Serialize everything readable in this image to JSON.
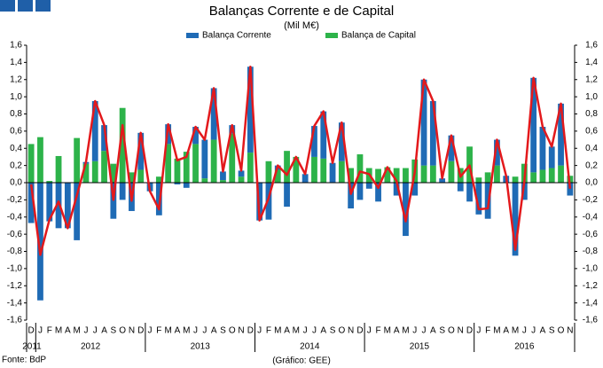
{
  "chart_data": {
    "type": "stacked-bar-line",
    "title": "Balanças Corrente e de Capital",
    "subtitle": "(Mil M€)",
    "source": "Fonte: BdP",
    "credit": "(Gráfico: GEE)",
    "groups": [
      {
        "name": "2011",
        "categories": [
          "D"
        ]
      },
      {
        "name": "2012",
        "categories": [
          "J",
          "F",
          "M",
          "A",
          "M",
          "J",
          "J",
          "A",
          "S",
          "O",
          "N",
          "D"
        ]
      },
      {
        "name": "2013",
        "categories": [
          "J",
          "F",
          "M",
          "A",
          "M",
          "J",
          "J",
          "A",
          "S",
          "O",
          "N",
          "D"
        ]
      },
      {
        "name": "2014",
        "categories": [
          "J",
          "F",
          "M",
          "A",
          "M",
          "J",
          "J",
          "A",
          "S",
          "O",
          "N",
          "D"
        ]
      },
      {
        "name": "2015",
        "categories": [
          "J",
          "F",
          "M",
          "A",
          "M",
          "J",
          "J",
          "A",
          "S",
          "O",
          "N",
          "D"
        ]
      },
      {
        "name": "2016",
        "categories": [
          "J",
          "F",
          "M",
          "A",
          "M",
          "J",
          "J",
          "A",
          "S",
          "O",
          "N"
        ]
      }
    ],
    "series": [
      {
        "name": "Balança Corrente",
        "color": "#1f6bb5",
        "values": [
          -0.47,
          -1.37,
          -0.45,
          -0.53,
          -0.53,
          -0.67,
          0.02,
          0.7,
          0.3,
          -0.42,
          -0.2,
          -0.33,
          0.43,
          -0.1,
          -0.38,
          0.23,
          -0.02,
          -0.06,
          0.2,
          0.45,
          0.6,
          0.1,
          0.1,
          0.07,
          1.0,
          -0.44,
          -0.43,
          0.05,
          -0.28,
          0.0,
          0.1,
          0.36,
          0.55,
          0.23,
          0.45,
          -0.3,
          -0.2,
          -0.07,
          -0.22,
          0.0,
          -0.15,
          -0.62,
          -0.15,
          1.0,
          0.75,
          0.05,
          0.3,
          -0.1,
          -0.22,
          -0.37,
          -0.42,
          0.3,
          0.08,
          -0.85,
          -0.2,
          1.1,
          0.5,
          0.25,
          0.72,
          -0.15
        ]
      },
      {
        "name": "Balança de Capital",
        "color": "#2db34a",
        "values": [
          0.45,
          0.53,
          0.02,
          0.31,
          0.0,
          0.52,
          0.22,
          0.25,
          0.37,
          0.22,
          0.87,
          0.12,
          0.15,
          0.0,
          0.07,
          0.45,
          0.28,
          0.36,
          0.45,
          0.05,
          0.5,
          0.03,
          0.57,
          0.07,
          0.35,
          0.0,
          0.25,
          0.15,
          0.37,
          0.3,
          0.0,
          0.3,
          0.28,
          0.0,
          0.25,
          0.17,
          0.33,
          0.17,
          0.16,
          0.18,
          0.17,
          0.17,
          0.27,
          0.2,
          0.2,
          0.0,
          0.25,
          0.17,
          0.42,
          0.06,
          0.12,
          0.2,
          0.0,
          0.07,
          0.22,
          0.12,
          0.15,
          0.17,
          0.2,
          0.08
        ]
      }
    ],
    "line": {
      "color": "#e3191c",
      "values": [
        -0.02,
        -0.84,
        -0.43,
        -0.22,
        -0.53,
        -0.15,
        0.24,
        0.95,
        0.67,
        -0.2,
        0.67,
        -0.21,
        0.58,
        -0.1,
        -0.31,
        0.68,
        0.26,
        0.3,
        0.65,
        0.5,
        1.1,
        0.13,
        0.67,
        0.14,
        1.35,
        -0.44,
        -0.18,
        0.2,
        0.09,
        0.3,
        0.1,
        0.66,
        0.83,
        0.23,
        0.7,
        -0.13,
        0.13,
        0.1,
        -0.06,
        0.18,
        0.02,
        -0.45,
        0.12,
        1.2,
        0.95,
        0.05,
        0.55,
        0.07,
        0.2,
        -0.31,
        -0.3,
        0.5,
        0.08,
        -0.78,
        0.02,
        1.22,
        0.65,
        0.42,
        0.92,
        -0.07
      ]
    },
    "ylim": [
      -1.6,
      1.6
    ],
    "yticks": [
      {
        "value": -1.6,
        "label": "-1,6"
      },
      {
        "value": -1.4,
        "label": "-1,4"
      },
      {
        "value": -1.2,
        "label": "-1,2"
      },
      {
        "value": -1.0,
        "label": "-1,0"
      },
      {
        "value": -0.8,
        "label": "-0,8"
      },
      {
        "value": -0.6,
        "label": "-0,6"
      },
      {
        "value": -0.4,
        "label": "-0,4"
      },
      {
        "value": -0.2,
        "label": "-0,2"
      },
      {
        "value": 0,
        "label": "0,0"
      },
      {
        "value": 0.2,
        "label": "0,2"
      },
      {
        "value": 0.4,
        "label": "0,4"
      },
      {
        "value": 0.6,
        "label": "0,6"
      },
      {
        "value": 0.8,
        "label": "0,8"
      },
      {
        "value": 1.0,
        "label": "1,0"
      },
      {
        "value": 1.2,
        "label": "1,2"
      },
      {
        "value": 1.4,
        "label": "1,4"
      },
      {
        "value": 1.6,
        "label": "1,6"
      }
    ]
  }
}
